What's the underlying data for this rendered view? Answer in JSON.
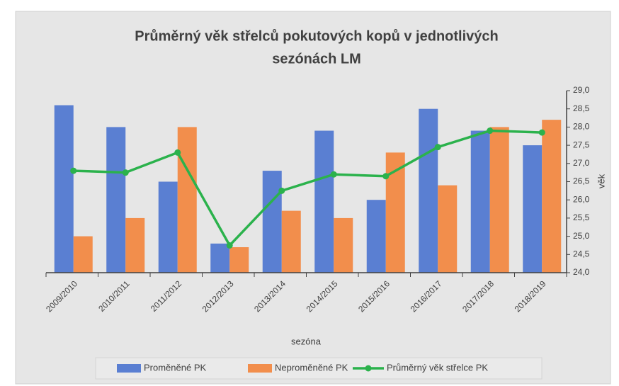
{
  "chart_data": {
    "type": "bar",
    "title": [
      "Průměrný věk střelců pokutových kopů v jednotlivých",
      "sezónách LM"
    ],
    "x_label": "sezóna",
    "y_label": "věk",
    "categories": [
      "2009/2010",
      "2010/2011",
      "2011/2012",
      "2012/2013",
      "2013/2014",
      "2014/2015",
      "2015/2016",
      "2016/2017",
      "2017/2018",
      "2018/2019"
    ],
    "series": [
      {
        "name": "Proměněné PK",
        "type": "bar",
        "color": "#5a7fd2",
        "values": [
          28.6,
          28.0,
          26.5,
          24.8,
          26.8,
          27.9,
          26.0,
          28.5,
          27.9,
          27.5
        ]
      },
      {
        "name": "Neproměněné PK",
        "type": "bar",
        "color": "#f28e4c",
        "values": [
          25.0,
          25.5,
          28.0,
          24.7,
          25.7,
          25.5,
          27.3,
          26.4,
          28.0,
          28.2
        ]
      },
      {
        "name": "Průměrný věk střelce PK",
        "type": "line",
        "color": "#2bb24c",
        "values": [
          26.8,
          26.75,
          27.3,
          24.75,
          26.25,
          26.7,
          26.65,
          27.45,
          27.9,
          27.85
        ]
      }
    ],
    "ylim": [
      24,
      29
    ],
    "yticks": [
      {
        "value": 24,
        "label": "24,0"
      },
      {
        "value": 24.5,
        "label": "24,5"
      },
      {
        "value": 25,
        "label": "25,0"
      },
      {
        "value": 25.5,
        "label": "25,5"
      },
      {
        "value": 26,
        "label": "26,0"
      },
      {
        "value": 26.5,
        "label": "26,5"
      },
      {
        "value": 27,
        "label": "27,0"
      },
      {
        "value": 27.5,
        "label": "27,5"
      },
      {
        "value": 28,
        "label": "28,0"
      },
      {
        "value": 28.5,
        "label": "28,5"
      },
      {
        "value": 29,
        "label": "29,0"
      }
    ],
    "y_axis_side": "right",
    "grid": false,
    "legend": "bottom"
  }
}
